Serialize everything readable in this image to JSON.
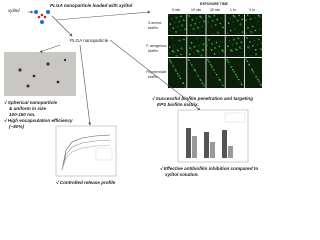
{
  "header": {
    "title": "PLGA nanoparticle loaded with xylitol",
    "drug": "xylitol",
    "particle": "PLGA nanoparticle"
  },
  "microscopy": {
    "header": "EXPOSURE TIME",
    "times": [
      "5 min",
      "15 min",
      "30 min",
      "1 hr",
      "3 hr"
    ],
    "rows": [
      [
        "S.aureus",
        "biofilm"
      ],
      [
        "P. aeruginosa",
        "biofilm"
      ],
      [
        "Polymicrobial",
        "biofilm"
      ]
    ]
  },
  "bullets": {
    "morphology": [
      "√ Spherical nanoparticle",
      "& uniform in size",
      "100-150 nm."
    ],
    "encapsulation": [
      "√ High encapsulation efficiency",
      "(~80%)"
    ],
    "release": [
      "√ Controlled release profile"
    ],
    "penetration": [
      "√ Successful biofilm penetration and targeting",
      "EPS biofilm matrix."
    ],
    "inhibition": [
      "√ Effective antibiofilm inhibition compared to",
      "xylitol solution."
    ]
  }
}
